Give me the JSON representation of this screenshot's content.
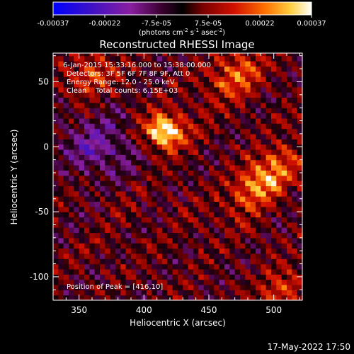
{
  "chart_data": {
    "type": "heatmap",
    "title": "Reconstructed RHESSI Image",
    "xlabel": "Heliocentric X (arcsec)",
    "ylabel": "Heliocentric Y (arcsec)",
    "xlim": [
      330,
      522
    ],
    "ylim": [
      -118,
      72
    ],
    "x_ticks": [
      350,
      400,
      450,
      500
    ],
    "y_ticks": [
      50,
      0,
      -50,
      -100
    ],
    "colorbar": {
      "min": -0.00037,
      "max": 0.00037,
      "tick_labels": [
        "-0.00037",
        "-0.00022",
        "-7.5e-05",
        "7.5e-05",
        "0.00022",
        "0.00037"
      ],
      "unit_prefix": "(photons cm",
      "unit_mid": " s",
      "unit_suffix": " asec",
      "unit_end": ")",
      "sup1": "-2",
      "sup2": "-1",
      "sup3": "-2",
      "colors": [
        "#0000ff",
        "#5500a0",
        "#8a1fa0",
        "#2a0018",
        "#c00000",
        "#ff6000",
        "#ffd040",
        "#ffffff"
      ]
    },
    "annotations": [
      "6-Jan-2015 15:33:16.000 to 15:38:00.000",
      "Detectors: 3F 5F 6F 7F 8F 9F, Att 0",
      "Energy Range: 12.0 - 25.0 keV",
      "Clean    Total counts: 6.15E+03"
    ],
    "peak_label": "Position of Peak = [416,10]",
    "peak": [
      416,
      10
    ],
    "sources": [
      {
        "x": 416,
        "y": 12,
        "sx": 11,
        "sy": 9,
        "amp": 1.0
      },
      {
        "x": 492,
        "y": -25,
        "sx": 22,
        "sy": 10,
        "amp": 0.75,
        "rot": -0.7
      },
      {
        "x": 470,
        "y": 55,
        "sx": 18,
        "sy": 10,
        "amp": 0.55,
        "rot": -0.7
      },
      {
        "x": 360,
        "y": 55,
        "sx": 14,
        "sy": 8,
        "amp": 0.5,
        "rot": -0.7
      },
      {
        "x": 505,
        "y": -110,
        "sx": 14,
        "sy": 8,
        "amp": 0.5,
        "rot": -0.7
      }
    ],
    "negative_region": {
      "x": 365,
      "y": 0,
      "sx": 20,
      "sy": 16,
      "amp": -0.45
    }
  },
  "timestamp": "17-May-2022 17:50"
}
